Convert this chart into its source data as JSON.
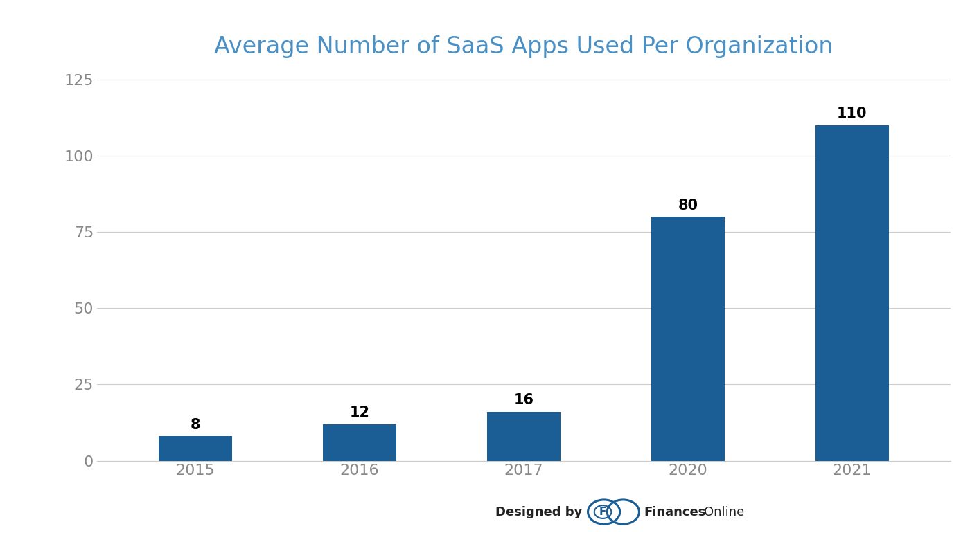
{
  "title": "Average Number of SaaS Apps Used Per Organization",
  "categories": [
    "2015",
    "2016",
    "2017",
    "2020",
    "2021"
  ],
  "values": [
    8,
    12,
    16,
    80,
    110
  ],
  "bar_color": "#1b5e96",
  "background_color": "#ffffff",
  "ylim": [
    0,
    128
  ],
  "yticks": [
    0,
    25,
    50,
    75,
    100,
    125
  ],
  "ytick_labels": [
    "0",
    "25",
    "50",
    "75",
    "100",
    "125"
  ],
  "title_color": "#4a90c4",
  "title_fontsize": 24,
  "tick_label_color": "#888888",
  "tick_fontsize": 16,
  "value_label_fontsize": 15,
  "grid_color": "#cccccc",
  "watermark_designed": "Designed by",
  "watermark_brand_bold": "Finances",
  "watermark_brand_normal": "Online",
  "logo_color": "#1b5e96"
}
